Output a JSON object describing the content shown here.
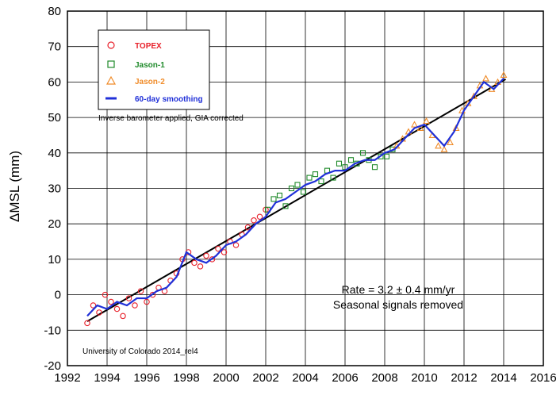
{
  "chart_data": {
    "type": "scatter",
    "title": "",
    "xlabel": "",
    "ylabel": "ΔMSL (mm)",
    "xlim": [
      1992,
      2016
    ],
    "ylim": [
      -20,
      80
    ],
    "x_ticks": [
      "1992",
      "1994",
      "1996",
      "1998",
      "2000",
      "2002",
      "2004",
      "2006",
      "2008",
      "2010",
      "2012",
      "2014",
      "2016"
    ],
    "y_ticks": [
      "-20",
      "-10",
      "0",
      "10",
      "20",
      "30",
      "40",
      "50",
      "60",
      "70",
      "80"
    ],
    "grid": true,
    "legend_position": "top-left",
    "legend": [
      {
        "label": "TOPEX",
        "marker": "circle",
        "color": "#e8202a"
      },
      {
        "label": "Jason-1",
        "marker": "square",
        "color": "#1f8a2a"
      },
      {
        "label": "Jason-2",
        "marker": "triangle",
        "color": "#f08c2a"
      },
      {
        "label": "60-day smoothing",
        "marker": "line",
        "color": "#2030d8"
      }
    ],
    "annotations": {
      "correction_note": "Inverse barometer applied, GIA corrected",
      "rate": "Rate = 3.2 ± 0.4 mm/yr",
      "seasonal": "Seasonal signals removed",
      "source": "University of Colorado 2014_rel4"
    },
    "trend": {
      "name": "",
      "x": [
        1993.0,
        2014.1
      ],
      "y": [
        -7.5,
        60.8
      ],
      "color": "#000000"
    },
    "series": [
      {
        "name": "TOPEX",
        "color": "#e8202a",
        "x": [
          1993.0,
          1993.3,
          1993.6,
          1993.9,
          1994.2,
          1994.5,
          1994.8,
          1995.1,
          1995.4,
          1995.7,
          1996.0,
          1996.3,
          1996.6,
          1996.9,
          1997.2,
          1997.5,
          1997.8,
          1998.1,
          1998.4,
          1998.7,
          1999.0,
          1999.3,
          1999.6,
          1999.9,
          2000.2,
          2000.5,
          2000.8,
          2001.1,
          2001.4,
          2001.7,
          2002.0
        ],
        "y": [
          -8,
          -3,
          -5,
          0,
          -2,
          -4,
          -6,
          -1,
          -3,
          1,
          -2,
          0,
          2,
          1,
          4,
          6,
          10,
          12,
          9,
          8,
          11,
          10,
          13,
          12,
          15,
          14,
          17,
          19,
          21,
          22,
          24
        ]
      },
      {
        "name": "Jason-1",
        "color": "#1f8a2a",
        "x": [
          2002.1,
          2002.4,
          2002.7,
          2003.0,
          2003.3,
          2003.6,
          2003.9,
          2004.2,
          2004.5,
          2004.8,
          2005.1,
          2005.4,
          2005.7,
          2006.0,
          2006.3,
          2006.6,
          2006.9,
          2007.2,
          2007.5,
          2007.8,
          2008.1,
          2008.4
        ],
        "y": [
          24,
          27,
          28,
          25,
          30,
          31,
          29,
          33,
          34,
          32,
          35,
          33,
          37,
          36,
          38,
          37,
          40,
          38,
          36,
          39,
          39,
          41
        ]
      },
      {
        "name": "Jason-2",
        "color": "#f08c2a",
        "x": [
          2008.6,
          2008.9,
          2009.2,
          2009.5,
          2009.8,
          2010.1,
          2010.4,
          2010.7,
          2011.0,
          2011.3,
          2011.6,
          2011.9,
          2012.2,
          2012.5,
          2012.8,
          2013.1,
          2013.4,
          2013.7,
          2014.0
        ],
        "y": [
          42,
          44,
          46,
          48,
          47,
          49,
          45,
          42,
          41,
          43,
          47,
          52,
          54,
          56,
          59,
          61,
          58,
          60,
          62
        ]
      },
      {
        "name": "60-day smoothing",
        "color": "#2030d8",
        "x": [
          1993.0,
          1993.5,
          1994.0,
          1994.5,
          1995.0,
          1995.5,
          1996.0,
          1996.5,
          1997.0,
          1997.5,
          1998.0,
          1998.5,
          1999.0,
          1999.5,
          2000.0,
          2000.5,
          2001.0,
          2001.5,
          2002.0,
          2002.5,
          2003.0,
          2003.5,
          2004.0,
          2004.5,
          2005.0,
          2005.5,
          2006.0,
          2006.5,
          2007.0,
          2007.5,
          2008.0,
          2008.5,
          2009.0,
          2009.5,
          2010.0,
          2010.5,
          2011.0,
          2011.5,
          2012.0,
          2012.5,
          2013.0,
          2013.5,
          2014.0
        ],
        "y": [
          -6,
          -3,
          -4,
          -2,
          -3,
          -1,
          -1,
          1,
          2,
          5,
          12,
          10,
          9,
          11,
          14,
          15,
          17,
          20,
          22,
          26,
          27,
          29,
          31,
          32,
          34,
          35,
          35,
          37,
          38,
          38,
          40,
          41,
          44,
          47,
          48,
          45,
          42,
          46,
          52,
          56,
          60,
          58,
          61
        ]
      }
    ]
  }
}
